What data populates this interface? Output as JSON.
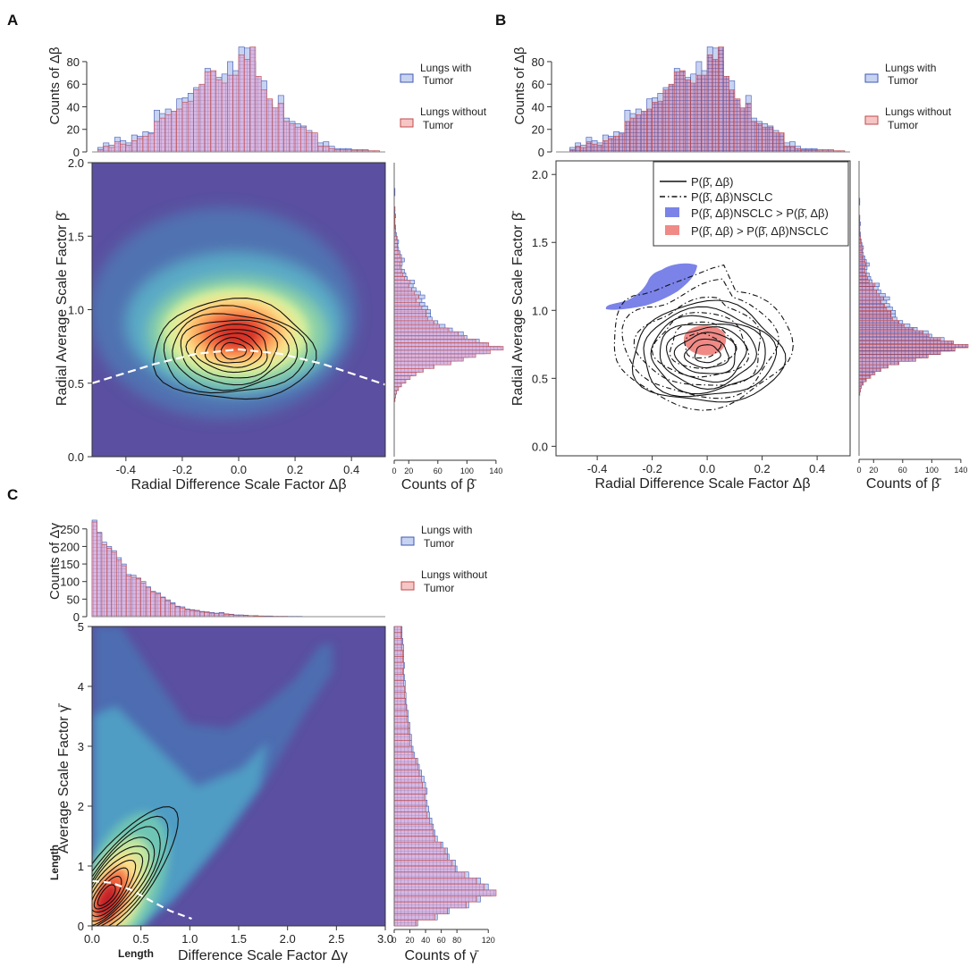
{
  "panels": {
    "a": "A",
    "b": "B",
    "c": "C"
  },
  "colors": {
    "tumor_fill": "#c7d3f1",
    "tumor_edge": "#3f57b3",
    "notumor_fill": "#f6c6c6",
    "notumor_edge": "#c24a4a",
    "overlap_fill": "#dcc2e6",
    "density_low": "#5a4fa0",
    "density_high": "#d73027",
    "region_blue": "#7b83e8",
    "region_red": "#f08a86"
  },
  "legend_hist": {
    "tumor_label": [
      "Lungs with",
      "Tumor"
    ],
    "notumor_label": [
      "Lungs without",
      "Tumor"
    ]
  },
  "legend_contour": {
    "solid": "P(β̄, Δβ)",
    "dashed": "P(β̄, Δβ)NSCLC",
    "blue": "P(β̄, Δβ)NSCLC > P(β̄, Δβ)",
    "red": "P(β̄, Δβ) > P(β̄, Δβ)NSCLC"
  },
  "chart_data": [
    {
      "id": "A",
      "type": "heatmap",
      "title": "",
      "xlabel": "Radial Difference Scale Factor Δβ",
      "ylabel": "Radial Average Scale Factor β̄",
      "xlim": [
        -0.52,
        0.52
      ],
      "ylim": [
        0,
        2.0
      ],
      "xticks": [
        -0.4,
        -0.2,
        0.0,
        0.2,
        0.4
      ],
      "xtick_labels": [
        "-0.4",
        "-0.2",
        "0.0",
        "0.2",
        "0.4"
      ],
      "yticks": [
        0,
        0.5,
        1.0,
        1.5,
        2.0
      ],
      "ytick_labels": [
        "0.0",
        "0.5",
        "1.0",
        "1.5",
        "2.0"
      ],
      "density_peak": {
        "x": 0.0,
        "y": 0.72
      },
      "fit_curve": {
        "description": "white dashed",
        "points": [
          [
            -0.52,
            0.5
          ],
          [
            -0.3,
            0.63
          ],
          [
            -0.15,
            0.7
          ],
          [
            0.0,
            0.73
          ],
          [
            0.15,
            0.7
          ],
          [
            0.3,
            0.63
          ],
          [
            0.52,
            0.49
          ]
        ]
      },
      "top_hist": {
        "ylabel": "Counts of Δβ",
        "yticks": [
          0,
          20,
          40,
          60,
          80
        ],
        "ylim": [
          0,
          95
        ],
        "bin_start": -0.5,
        "bin_width": 0.02,
        "tumor": [
          4,
          8,
          6,
          13,
          10,
          8,
          15,
          14,
          18,
          17,
          37,
          34,
          38,
          36,
          47,
          48,
          52,
          57,
          58,
          74,
          61,
          66,
          69,
          80,
          72,
          93,
          92,
          80,
          64,
          63,
          42,
          39,
          50,
          30,
          27,
          25,
          23,
          19,
          16,
          8,
          9,
          5,
          3,
          3,
          3,
          2,
          2,
          2,
          1,
          1
        ],
        "notumor": [
          2,
          5,
          4,
          9,
          7,
          6,
          10,
          12,
          14,
          16,
          27,
          30,
          33,
          36,
          38,
          44,
          45,
          55,
          60,
          71,
          72,
          64,
          61,
          68,
          68,
          86,
          82,
          93,
          67,
          55,
          47,
          39,
          43,
          27,
          25,
          22,
          22,
          17,
          17,
          5,
          5,
          3,
          2,
          2,
          2,
          1,
          1,
          1,
          1,
          1
        ]
      },
      "right_hist": {
        "xlabel": "Counts of β̄",
        "xticks": [
          0,
          20,
          60,
          100,
          140
        ],
        "xtick_labels": [
          "0",
          "20",
          "60",
          "100",
          "140"
        ],
        "xlim": [
          0,
          150
        ],
        "bin_start": 0.0,
        "bin_width": 0.025,
        "tumor": [
          0,
          0,
          0,
          0,
          0,
          0,
          0,
          0,
          0,
          0,
          0,
          0,
          0,
          0,
          0,
          1,
          2,
          3,
          5,
          9,
          14,
          18,
          26,
          36,
          50,
          70,
          86,
          102,
          125,
          146,
          127,
          117,
          100,
          95,
          80,
          70,
          60,
          52,
          50,
          50,
          46,
          42,
          38,
          42,
          36,
          30,
          26,
          28,
          18,
          16,
          14,
          10,
          11,
          14,
          10,
          8,
          6,
          5,
          6,
          4,
          3,
          2,
          2,
          1,
          1,
          2,
          1,
          1,
          0,
          0,
          0,
          1,
          1,
          0,
          0,
          0,
          0,
          0,
          0,
          0
        ],
        "notumor": [
          0,
          0,
          0,
          0,
          0,
          0,
          0,
          0,
          0,
          0,
          0,
          0,
          0,
          0,
          0,
          1,
          2,
          3,
          6,
          10,
          16,
          22,
          30,
          40,
          55,
          78,
          95,
          112,
          132,
          150,
          130,
          112,
          96,
          88,
          75,
          62,
          55,
          46,
          44,
          44,
          38,
          35,
          30,
          34,
          28,
          24,
          20,
          22,
          14,
          12,
          10,
          8,
          8,
          10,
          8,
          6,
          4,
          4,
          4,
          3,
          2,
          2,
          1,
          1,
          1,
          1,
          0,
          1,
          0,
          0,
          0,
          0,
          0,
          0,
          0,
          0,
          0,
          0,
          0,
          0
        ]
      }
    },
    {
      "id": "B",
      "type": "scatter",
      "title": "",
      "xlabel": "Radial Difference Scale Factor Δβ",
      "ylabel": "Radial Average Scale Factor β̄",
      "xlim": [
        -0.55,
        0.52
      ],
      "ylim": [
        -0.07,
        2.1
      ],
      "xticks": [
        -0.4,
        -0.2,
        0.0,
        0.2,
        0.4
      ],
      "xtick_labels": [
        "-0.4",
        "-0.2",
        "0.0",
        "0.2",
        "0.4"
      ],
      "yticks": [
        0,
        0.5,
        1.0,
        1.5,
        2.0
      ],
      "ytick_labels": [
        "0.0",
        "0.5",
        "1.0",
        "1.5",
        "2.0"
      ],
      "contour_center": {
        "x": 0.0,
        "y": 0.68
      },
      "nsclc_center": {
        "x": -0.02,
        "y": 0.74
      },
      "blue_region_extent": {
        "x": [
          -0.36,
          -0.1
        ],
        "y": [
          0.95,
          1.32
        ]
      },
      "red_region_extent": {
        "x": [
          -0.07,
          0.07
        ],
        "y": [
          0.6,
          0.8
        ]
      },
      "top_hist": {
        "ylabel": "Counts of Δβ",
        "yticks": [
          0,
          20,
          40,
          60,
          80
        ],
        "ylim": [
          0,
          95
        ],
        "bin_start": -0.5,
        "bin_width": 0.02,
        "tumor": [
          4,
          8,
          6,
          13,
          10,
          8,
          15,
          14,
          18,
          17,
          37,
          34,
          38,
          36,
          47,
          48,
          52,
          57,
          58,
          74,
          61,
          66,
          69,
          80,
          72,
          93,
          92,
          80,
          64,
          63,
          42,
          39,
          50,
          30,
          27,
          25,
          23,
          19,
          16,
          8,
          9,
          5,
          3,
          3,
          3,
          2,
          2,
          2,
          1,
          1
        ],
        "notumor": [
          2,
          5,
          4,
          9,
          7,
          6,
          10,
          12,
          14,
          16,
          27,
          30,
          33,
          36,
          38,
          44,
          45,
          55,
          60,
          71,
          72,
          64,
          61,
          68,
          68,
          86,
          82,
          93,
          67,
          55,
          47,
          39,
          43,
          27,
          25,
          22,
          22,
          17,
          17,
          5,
          5,
          3,
          2,
          2,
          2,
          1,
          1,
          1,
          1,
          1
        ]
      },
      "right_hist": {
        "xlabel": "Counts of β̄",
        "xticks": [
          0,
          20,
          60,
          100,
          140
        ],
        "xtick_labels": [
          "0",
          "20",
          "60",
          "100",
          "140"
        ],
        "xlim": [
          0,
          150
        ],
        "bin_start": 0.0,
        "bin_width": 0.025,
        "tumor": [
          0,
          0,
          0,
          0,
          0,
          0,
          0,
          0,
          0,
          0,
          0,
          0,
          0,
          0,
          0,
          1,
          2,
          3,
          5,
          9,
          14,
          18,
          26,
          36,
          50,
          70,
          86,
          102,
          125,
          146,
          127,
          117,
          100,
          95,
          80,
          70,
          60,
          52,
          50,
          50,
          46,
          42,
          38,
          42,
          36,
          30,
          26,
          28,
          18,
          16,
          14,
          10,
          11,
          14,
          10,
          8,
          6,
          5,
          6,
          4,
          3,
          2,
          2,
          1,
          1,
          2,
          1,
          1,
          0,
          0,
          0,
          1,
          1,
          0,
          0,
          0,
          0,
          0,
          0,
          0
        ],
        "notumor": [
          0,
          0,
          0,
          0,
          0,
          0,
          0,
          0,
          0,
          0,
          0,
          0,
          0,
          0,
          0,
          1,
          2,
          3,
          6,
          10,
          16,
          22,
          30,
          40,
          55,
          78,
          95,
          112,
          132,
          150,
          130,
          112,
          96,
          88,
          75,
          62,
          55,
          46,
          44,
          44,
          38,
          35,
          30,
          34,
          28,
          24,
          20,
          22,
          14,
          12,
          10,
          8,
          8,
          10,
          8,
          6,
          4,
          4,
          4,
          3,
          2,
          2,
          1,
          1,
          1,
          1,
          0,
          1,
          0,
          0,
          0,
          0,
          0,
          0,
          0,
          0,
          0,
          0,
          0,
          0
        ]
      }
    },
    {
      "id": "C",
      "type": "heatmap",
      "title": "",
      "xlabel": "Difference Scale Factor Δγ",
      "xlabel_prefix": "Length",
      "ylabel": "Average Scale Factor γ̄",
      "ylabel_prefix": "Length",
      "xlim": [
        0,
        3.0
      ],
      "ylim": [
        0,
        5
      ],
      "xticks": [
        0,
        0.5,
        1.0,
        1.5,
        2.0,
        2.5,
        3.0
      ],
      "xtick_labels": [
        "0.0",
        "0.5",
        "1.0",
        "1.5",
        "2.0",
        "2.5",
        "3.0"
      ],
      "yticks": [
        0,
        1,
        2,
        3,
        4,
        5
      ],
      "ytick_labels": [
        "0",
        "1",
        "2",
        "3",
        "4",
        "5"
      ],
      "density_peak": {
        "x": 0.12,
        "y": 0.45
      },
      "fit_curve": {
        "description": "white dashed",
        "points": [
          [
            0,
            0.75
          ],
          [
            0.2,
            0.72
          ],
          [
            0.4,
            0.6
          ],
          [
            0.6,
            0.42
          ],
          [
            0.8,
            0.25
          ],
          [
            1.02,
            0.12
          ]
        ]
      },
      "top_hist": {
        "ylabel": "Counts of Δγ",
        "yticks": [
          0,
          50,
          100,
          150,
          200,
          250
        ],
        "ylim": [
          0,
          280
        ],
        "bin_start": 0.0,
        "bin_width": 0.05,
        "tumor": [
          275,
          240,
          212,
          200,
          188,
          168,
          150,
          120,
          118,
          110,
          100,
          85,
          72,
          68,
          56,
          48,
          40,
          30,
          28,
          22,
          20,
          18,
          15,
          14,
          12,
          10,
          12,
          8,
          7,
          5,
          5,
          4,
          3,
          3,
          2,
          2,
          2,
          1,
          1,
          1,
          1,
          1,
          1,
          0,
          0,
          0,
          0,
          0,
          0,
          0,
          0,
          0,
          0,
          0,
          0,
          0,
          0,
          0,
          0,
          0
        ],
        "notumor": [
          270,
          238,
          205,
          195,
          183,
          162,
          145,
          116,
          112,
          108,
          96,
          82,
          70,
          64,
          54,
          45,
          37,
          28,
          25,
          20,
          18,
          16,
          13,
          12,
          10,
          9,
          10,
          7,
          6,
          4,
          4,
          3,
          3,
          2,
          2,
          1,
          1,
          1,
          1,
          1,
          0,
          0,
          0,
          0,
          0,
          0,
          0,
          0,
          0,
          0,
          0,
          0,
          0,
          0,
          0,
          0,
          0,
          0,
          0,
          0
        ]
      },
      "right_hist": {
        "xlabel": "Counts of γ̄",
        "xticks": [
          0,
          20,
          40,
          60,
          80,
          120
        ],
        "xtick_labels": [
          "0",
          "20",
          "40",
          "60",
          "80",
          "120"
        ],
        "xlim": [
          0,
          130
        ],
        "bin_start": 0.0,
        "bin_width": 0.1,
        "tumor": [
          30,
          55,
          70,
          95,
          110,
          125,
          120,
          110,
          95,
          80,
          78,
          70,
          68,
          62,
          55,
          52,
          50,
          48,
          45,
          44,
          42,
          40,
          42,
          40,
          38,
          35,
          32,
          30,
          26,
          24,
          22,
          22,
          20,
          20,
          18,
          18,
          16,
          15,
          15,
          14,
          14,
          13,
          12,
          13,
          12,
          12,
          12,
          11,
          10,
          10
        ],
        "notumor": [
          28,
          52,
          68,
          92,
          105,
          130,
          115,
          105,
          90,
          78,
          74,
          68,
          65,
          60,
          52,
          50,
          48,
          45,
          42,
          40,
          40,
          38,
          40,
          36,
          35,
          32,
          30,
          28,
          24,
          22,
          20,
          20,
          18,
          18,
          16,
          16,
          15,
          14,
          13,
          13,
          12,
          12,
          11,
          12,
          11,
          11,
          10,
          10,
          9,
          9
        ]
      }
    }
  ]
}
